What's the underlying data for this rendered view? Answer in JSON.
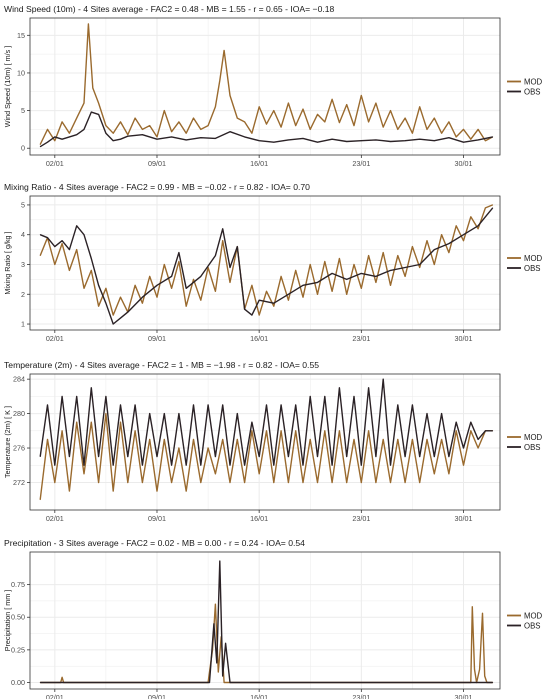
{
  "colors": {
    "MOD": "#9a6a2e",
    "OBS": "#2b2226",
    "grid": "#ebebeb",
    "frame": "#333333",
    "highlight": "#e8458b"
  },
  "chart_data": [
    {
      "type": "line",
      "title": "Wind Speed (10m) - 4 Sites average - FAC2 = 0.48 - MB = 1.55 - r = 0.65 - IOA= −0.18",
      "ylabel": "Wind Speed (10m)  [ m/s ]",
      "xlabel": "",
      "xlim": [
        0.3,
        32.5
      ],
      "ylim": [
        -0.9,
        17.3
      ],
      "yticks": [
        0,
        5,
        10,
        15
      ],
      "ytick_labels": [
        "0",
        "5",
        "10",
        "15"
      ],
      "xticks": [
        2,
        9,
        16,
        23,
        30
      ],
      "xtick_labels": [
        "02/01",
        "09/01",
        "16/01",
        "23/01",
        "30/01"
      ],
      "legend": [
        "MOD",
        "OBS"
      ],
      "legend_position": "right",
      "series": [
        {
          "name": "MOD",
          "x": [
            1,
            1.5,
            2,
            2.5,
            3,
            3.5,
            4,
            4.3,
            4.6,
            5,
            5.5,
            6,
            6.5,
            7,
            7.5,
            8,
            8.5,
            9,
            9.5,
            10,
            10.5,
            11,
            11.5,
            12,
            12.5,
            13,
            13.3,
            13.6,
            14,
            14.5,
            15,
            15.5,
            16,
            16.5,
            17,
            17.5,
            18,
            18.5,
            19,
            19.5,
            20,
            20.5,
            21,
            21.5,
            22,
            22.5,
            23,
            23.5,
            24,
            24.5,
            25,
            25.5,
            26,
            26.5,
            27,
            27.5,
            28,
            28.5,
            29,
            29.5,
            30,
            30.5,
            31,
            31.5,
            32
          ],
          "y": [
            0.5,
            2.5,
            1,
            3.5,
            2,
            4,
            6,
            16.5,
            8,
            6,
            3,
            2,
            3.5,
            1.8,
            4,
            2.5,
            3,
            1.5,
            5,
            2.2,
            3.5,
            2,
            4,
            2.5,
            3,
            5.5,
            9,
            13,
            7,
            4,
            3.5,
            2,
            5.5,
            3.2,
            5,
            2.8,
            6,
            3,
            5.2,
            2.5,
            4.5,
            3.5,
            6.5,
            3.4,
            5.8,
            3,
            7,
            3.5,
            6,
            2.8,
            5,
            2.5,
            4,
            2,
            5.5,
            2.5,
            4,
            2,
            3.5,
            1.5,
            2.5,
            1.2,
            2.5,
            1,
            1.5
          ]
        },
        {
          "name": "OBS",
          "x": [
            1,
            1.5,
            2,
            2.5,
            3,
            3.5,
            4,
            4.5,
            5,
            5.5,
            6,
            6.5,
            7,
            8,
            9,
            10,
            11,
            12,
            13,
            14,
            15,
            16,
            17,
            18,
            19,
            20,
            21,
            22,
            23,
            24,
            25,
            26,
            27,
            28,
            29,
            30,
            31,
            32
          ],
          "y": [
            0.2,
            0.8,
            1.5,
            1.2,
            1.5,
            1.8,
            2.5,
            4.8,
            4.5,
            2,
            1,
            1.2,
            1.6,
            1.8,
            1.2,
            1.5,
            1.1,
            1.4,
            1.3,
            2.2,
            1.5,
            1,
            0.8,
            1.1,
            1.3,
            0.8,
            1.2,
            0.9,
            1,
            1.1,
            0.9,
            1,
            1.2,
            1,
            1.4,
            0.8,
            1.1,
            1.5
          ]
        }
      ]
    },
    {
      "type": "line",
      "title": "Mixing Ratio - 4 Sites average - FAC2 = 0.99 - MB = −0.02 - r = 0.82 - IOA= 0.70",
      "ylabel": "Mixing Ratio  [ g/kg ]",
      "xlabel": "",
      "xlim": [
        0.3,
        32.5
      ],
      "ylim": [
        0.8,
        5.3
      ],
      "yticks": [
        1,
        2,
        3,
        4,
        5
      ],
      "ytick_labels": [
        "1",
        "2",
        "3",
        "4",
        "5"
      ],
      "xticks": [
        2,
        9,
        16,
        23,
        30
      ],
      "xtick_labels": [
        "02/01",
        "09/01",
        "16/01",
        "23/01",
        "30/01"
      ],
      "legend": [
        "MOD",
        "OBS"
      ],
      "legend_position": "right",
      "series": [
        {
          "name": "MOD",
          "x": [
            1,
            1.5,
            2,
            2.5,
            3,
            3.5,
            4,
            4.5,
            5,
            5.5,
            6,
            6.5,
            7,
            7.5,
            8,
            8.5,
            9,
            9.5,
            10,
            10.5,
            11,
            11.5,
            12,
            12.5,
            13,
            13.5,
            14,
            14.5,
            15,
            15.5,
            16,
            16.5,
            17,
            17.5,
            18,
            18.5,
            19,
            19.5,
            20,
            20.5,
            21,
            21.5,
            22,
            22.5,
            23,
            23.5,
            24,
            24.5,
            25,
            25.5,
            26,
            26.5,
            27,
            27.5,
            28,
            28.5,
            29,
            29.5,
            30,
            30.5,
            31,
            31.5,
            32
          ],
          "y": [
            3.3,
            3.9,
            3,
            3.7,
            2.8,
            3.5,
            2.2,
            2.8,
            1.6,
            2.2,
            1.3,
            1.9,
            1.4,
            2.3,
            1.7,
            2.6,
            1.9,
            3,
            2.2,
            3.1,
            1.6,
            2.5,
            1.8,
            2.9,
            2.1,
            3.8,
            2.4,
            3.6,
            1.5,
            2.3,
            1.3,
            2.1,
            1.6,
            2.6,
            1.8,
            2.8,
            1.9,
            3,
            2,
            3.1,
            2.1,
            3.2,
            2,
            3,
            2.2,
            3.3,
            2.4,
            3.4,
            2.3,
            3.3,
            2.6,
            3.6,
            2.9,
            3.8,
            3,
            4,
            3.4,
            4.3,
            3.8,
            4.6,
            4.2,
            4.9,
            5
          ]
        },
        {
          "name": "OBS",
          "x": [
            1,
            1.5,
            2,
            2.5,
            3,
            3.5,
            4,
            4.5,
            5,
            5.5,
            6,
            6.5,
            7,
            8,
            9,
            10,
            10.5,
            11,
            12,
            13,
            13.5,
            14,
            14.5,
            15,
            15.5,
            16,
            17,
            18,
            19,
            20,
            21,
            22,
            23,
            24,
            25,
            26,
            27,
            28,
            29,
            30,
            31,
            31.5,
            32
          ],
          "y": [
            4,
            3.9,
            3.6,
            3.8,
            3.5,
            4.3,
            4,
            3.2,
            2.3,
            1.7,
            1,
            1.2,
            1.4,
            1.9,
            2.3,
            2.6,
            3.4,
            2.2,
            2.6,
            3.3,
            4.2,
            2.9,
            3.6,
            1.5,
            1.3,
            1.8,
            1.7,
            2,
            2.3,
            2.4,
            2.7,
            2.5,
            2.7,
            2.6,
            2.8,
            2.9,
            3,
            3.5,
            3.7,
            4,
            4.3,
            4.6,
            4.9
          ]
        }
      ]
    },
    {
      "type": "line",
      "title": "Temperature (2m) - 4 Sites average - FAC2 = 1 - MB = −1.98 - r = 0.82 - IOA= 0.55",
      "ylabel": "Temperature (2m)  [ K ]",
      "xlabel": "",
      "xlim": [
        0.3,
        32.5
      ],
      "ylim": [
        268.8,
        284.6
      ],
      "yticks": [
        272,
        276,
        280,
        284
      ],
      "ytick_labels": [
        "272",
        "276",
        "280",
        "284"
      ],
      "xticks": [
        2,
        9,
        16,
        23,
        30
      ],
      "xtick_labels": [
        "02/01",
        "09/01",
        "16/01",
        "23/01",
        "30/01"
      ],
      "legend": [
        "MOD",
        "OBS"
      ],
      "legend_position": "right",
      "series": [
        {
          "name": "MOD",
          "x": [
            1,
            1.5,
            2,
            2.5,
            3,
            3.5,
            4,
            4.5,
            5,
            5.5,
            6,
            6.5,
            7,
            7.5,
            8,
            8.5,
            9,
            9.5,
            10,
            10.5,
            11,
            11.5,
            12,
            12.5,
            13,
            13.5,
            14,
            14.5,
            15,
            15.5,
            16,
            16.5,
            17,
            17.5,
            18,
            18.5,
            19,
            19.5,
            20,
            20.5,
            21,
            21.5,
            22,
            22.5,
            23,
            23.5,
            24,
            24.5,
            25,
            25.5,
            26,
            26.5,
            27,
            27.5,
            28,
            28.5,
            29,
            29.5,
            30,
            30.5,
            31,
            31.5,
            32
          ],
          "y": [
            270,
            277,
            272,
            278,
            271,
            279,
            273,
            279,
            272,
            280,
            271,
            279,
            272,
            278,
            272,
            277,
            271,
            277,
            272,
            276,
            271,
            277,
            272,
            276,
            273,
            277,
            272,
            277,
            272,
            278,
            273,
            278,
            272,
            278,
            272,
            278,
            272,
            277,
            272,
            278,
            272,
            278,
            272,
            277,
            272,
            278,
            272,
            277,
            272,
            277,
            272,
            277,
            272,
            277,
            273,
            277,
            273,
            278,
            274,
            278,
            276,
            278,
            278
          ]
        },
        {
          "name": "OBS",
          "x": [
            1,
            1.5,
            2,
            2.5,
            3,
            3.5,
            4,
            4.5,
            5,
            5.5,
            6,
            6.5,
            7,
            7.5,
            8,
            8.5,
            9,
            9.5,
            10,
            10.5,
            11,
            11.5,
            12,
            12.5,
            13,
            13.5,
            14,
            14.5,
            15,
            15.5,
            16,
            16.5,
            17,
            17.5,
            18,
            18.5,
            19,
            19.5,
            20,
            20.5,
            21,
            21.5,
            22,
            22.5,
            23,
            23.5,
            24,
            24.5,
            25,
            25.5,
            26,
            26.5,
            27,
            27.5,
            28,
            28.5,
            29,
            29.5,
            30,
            30.5,
            31,
            31.5,
            32
          ],
          "y": [
            275,
            281,
            274,
            282,
            275,
            282,
            274,
            283,
            275,
            282,
            274,
            281,
            275,
            281,
            274,
            280,
            275,
            280,
            274,
            280,
            274,
            281,
            274,
            281,
            275,
            281,
            274,
            280,
            274,
            279,
            275,
            281,
            274,
            281,
            275,
            281,
            274,
            282,
            275,
            282,
            274,
            283,
            275,
            282,
            274,
            283,
            275,
            284,
            274,
            281,
            275,
            281,
            275,
            280,
            275,
            280,
            275,
            279,
            276,
            279,
            277,
            278,
            278
          ]
        }
      ]
    },
    {
      "type": "line",
      "title": "Precipitation - 3 Sites average - FAC2 = 0.02 - MB = 0.00 - r = 0.24 - IOA= 0.54",
      "ylabel": "Precipitation  [ mm ]",
      "xlabel": "",
      "xlim": [
        0.3,
        32.5
      ],
      "ylim": [
        -0.05,
        1.0
      ],
      "yticks": [
        0.0,
        0.25,
        0.5,
        0.75
      ],
      "ytick_labels": [
        "0.00",
        "0.25",
        "0.50",
        "0.75"
      ],
      "xticks": [
        2,
        9,
        16,
        23,
        30
      ],
      "xtick_labels": [
        "02/01",
        "09/01",
        "16/01",
        "23/01",
        "30/01"
      ],
      "legend": [
        "MOD",
        "OBS"
      ],
      "legend_position": "right",
      "series": [
        {
          "name": "MOD",
          "x": [
            1,
            2.4,
            2.5,
            2.6,
            12.5,
            12.8,
            13,
            13.2,
            13.4,
            13.6,
            14,
            30.5,
            30.6,
            30.75,
            30.9,
            31.1,
            31.3,
            31.45,
            31.6,
            32
          ],
          "y": [
            0,
            0,
            0.04,
            0,
            0,
            0.25,
            0.6,
            0.08,
            0.35,
            0,
            0,
            0,
            0.58,
            0.1,
            0,
            0.1,
            0.53,
            0.05,
            0,
            0
          ]
        },
        {
          "name": "OBS",
          "x": [
            1,
            12.6,
            12.9,
            13.1,
            13.3,
            13.5,
            13.7,
            14,
            32
          ],
          "y": [
            0,
            0,
            0.45,
            0.15,
            0.93,
            0.05,
            0.3,
            0,
            0
          ]
        }
      ]
    }
  ]
}
